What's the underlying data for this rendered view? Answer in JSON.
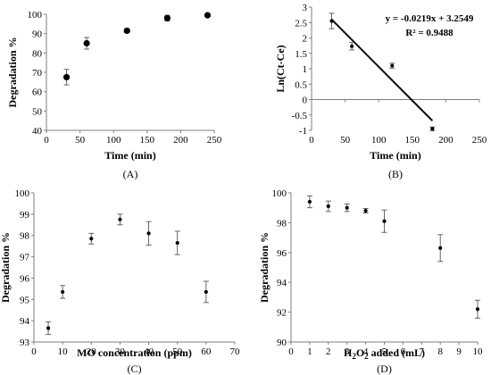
{
  "chart_data": [
    {
      "type": "scatter",
      "xlabel": "Time (min)",
      "ylabel": "Degradation %",
      "caption": "(A)",
      "xlim": [
        0,
        250
      ],
      "ylim": [
        40,
        100
      ],
      "xticks": [
        0,
        50,
        100,
        150,
        200,
        250
      ],
      "yticks": [
        40,
        50,
        60,
        70,
        80,
        90,
        100
      ],
      "markers": "large",
      "points": [
        {
          "x": 30,
          "y": 67.5,
          "err": 4
        },
        {
          "x": 60,
          "y": 85,
          "err": 3
        },
        {
          "x": 120,
          "y": 91.5,
          "err": 1
        },
        {
          "x": 180,
          "y": 98,
          "err": 1.5
        },
        {
          "x": 240,
          "y": 99.5,
          "err": 0.5
        }
      ]
    },
    {
      "type": "scatter",
      "xlabel": "Time (min)",
      "ylabel": "Ln(Ct-Ce)",
      "caption": "(B)",
      "xlim": [
        0,
        250
      ],
      "ylim": [
        -1,
        3
      ],
      "xticks": [
        0,
        50,
        100,
        150,
        200,
        250
      ],
      "yticks": [
        -1,
        -0.5,
        0,
        0.5,
        1,
        1.5,
        2,
        2.5,
        3
      ],
      "markers": "small",
      "points": [
        {
          "x": 30,
          "y": 2.55,
          "err": 0.25
        },
        {
          "x": 60,
          "y": 1.73,
          "err": 0.12
        },
        {
          "x": 120,
          "y": 1.1,
          "err": 0.08
        },
        {
          "x": 180,
          "y": -0.95,
          "err": 0.06
        }
      ],
      "trendline": {
        "slope": -0.0219,
        "intercept": 3.2549,
        "x_range": [
          30,
          180
        ]
      },
      "annotations": [
        "y = -0.0219x + 3.2549",
        "R² = 0.9488"
      ]
    },
    {
      "type": "scatter",
      "xlabel": "MO concentration (ppm)",
      "ylabel": "Degradation %",
      "caption": "(C)",
      "xlim": [
        0,
        70
      ],
      "ylim": [
        93,
        100
      ],
      "xticks": [
        0,
        10,
        20,
        30,
        40,
        50,
        60,
        70
      ],
      "yticks": [
        93,
        94,
        95,
        96,
        97,
        98,
        99,
        100
      ],
      "markers": "small",
      "points": [
        {
          "x": 5,
          "y": 93.65,
          "err": 0.3
        },
        {
          "x": 10,
          "y": 95.35,
          "err": 0.3
        },
        {
          "x": 20,
          "y": 97.85,
          "err": 0.25
        },
        {
          "x": 30,
          "y": 98.75,
          "err": 0.25
        },
        {
          "x": 40,
          "y": 98.1,
          "err": 0.55
        },
        {
          "x": 50,
          "y": 97.65,
          "err": 0.55
        },
        {
          "x": 60,
          "y": 95.35,
          "err": 0.5
        }
      ]
    },
    {
      "type": "scatter",
      "xlabel": "H2O2 added (mL)",
      "ylabel": "Degradation %",
      "caption": "(D)",
      "xlim": [
        0,
        10
      ],
      "ylim": [
        90,
        100
      ],
      "xticks": [
        0,
        1,
        2,
        3,
        4,
        5,
        6,
        7,
        8,
        9,
        10
      ],
      "yticks": [
        90,
        92,
        94,
        96,
        98,
        100
      ],
      "markers": "small",
      "points": [
        {
          "x": 1,
          "y": 99.4,
          "err": 0.4
        },
        {
          "x": 2,
          "y": 99.1,
          "err": 0.35
        },
        {
          "x": 3,
          "y": 99.0,
          "err": 0.25
        },
        {
          "x": 4,
          "y": 98.8,
          "err": 0.15
        },
        {
          "x": 5,
          "y": 98.1,
          "err": 0.75
        },
        {
          "x": 8,
          "y": 96.3,
          "err": 0.9
        },
        {
          "x": 10,
          "y": 92.2,
          "err": 0.6
        }
      ]
    }
  ]
}
